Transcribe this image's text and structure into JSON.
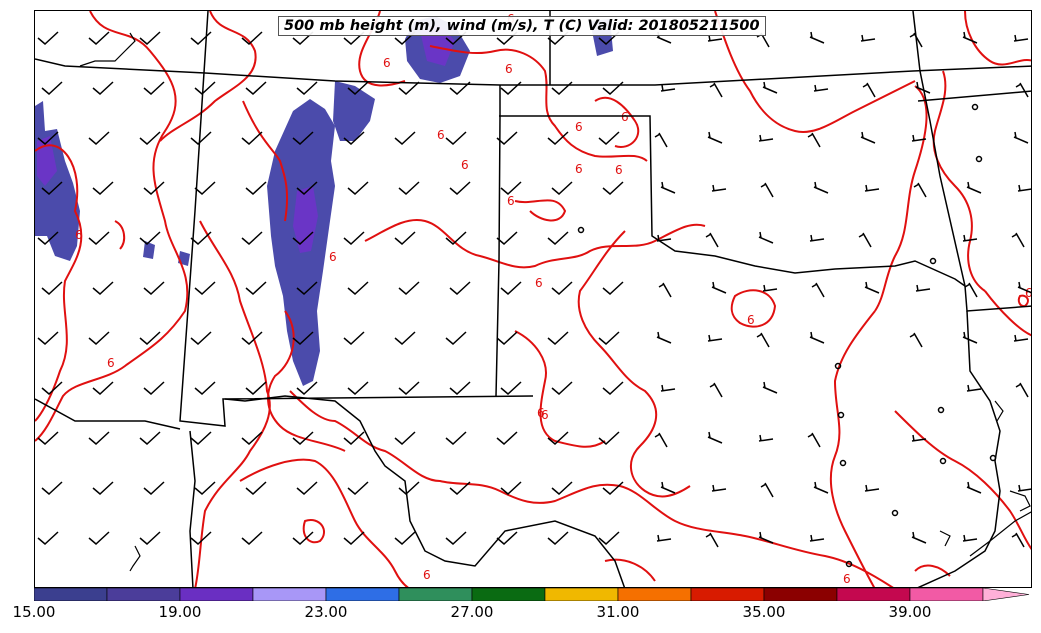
{
  "title": "500 mb height (m), wind (m/s), T (C) Valid: 201805211500",
  "colorbar": {
    "colors": [
      "#3b3f8f",
      "#4b3d9a",
      "#6a2fc2",
      "#a897f7",
      "#2e6ee6",
      "#2f8f5c",
      "#0a6b12",
      "#f0b800",
      "#f57000",
      "#d81b00",
      "#8b0000",
      "#c4084f",
      "#f25aa5",
      "#ffb0d8"
    ],
    "tick_labels": [
      "15.00",
      "19.00",
      "23.00",
      "27.00",
      "31.00",
      "35.00",
      "39.00"
    ]
  },
  "contour_labels": [
    "6",
    "6",
    "6",
    "6",
    "6",
    "6",
    "6",
    "6",
    "6",
    "6",
    "6",
    "6",
    "6",
    "6",
    "6",
    "6",
    "6",
    "6",
    "6",
    "6"
  ]
}
